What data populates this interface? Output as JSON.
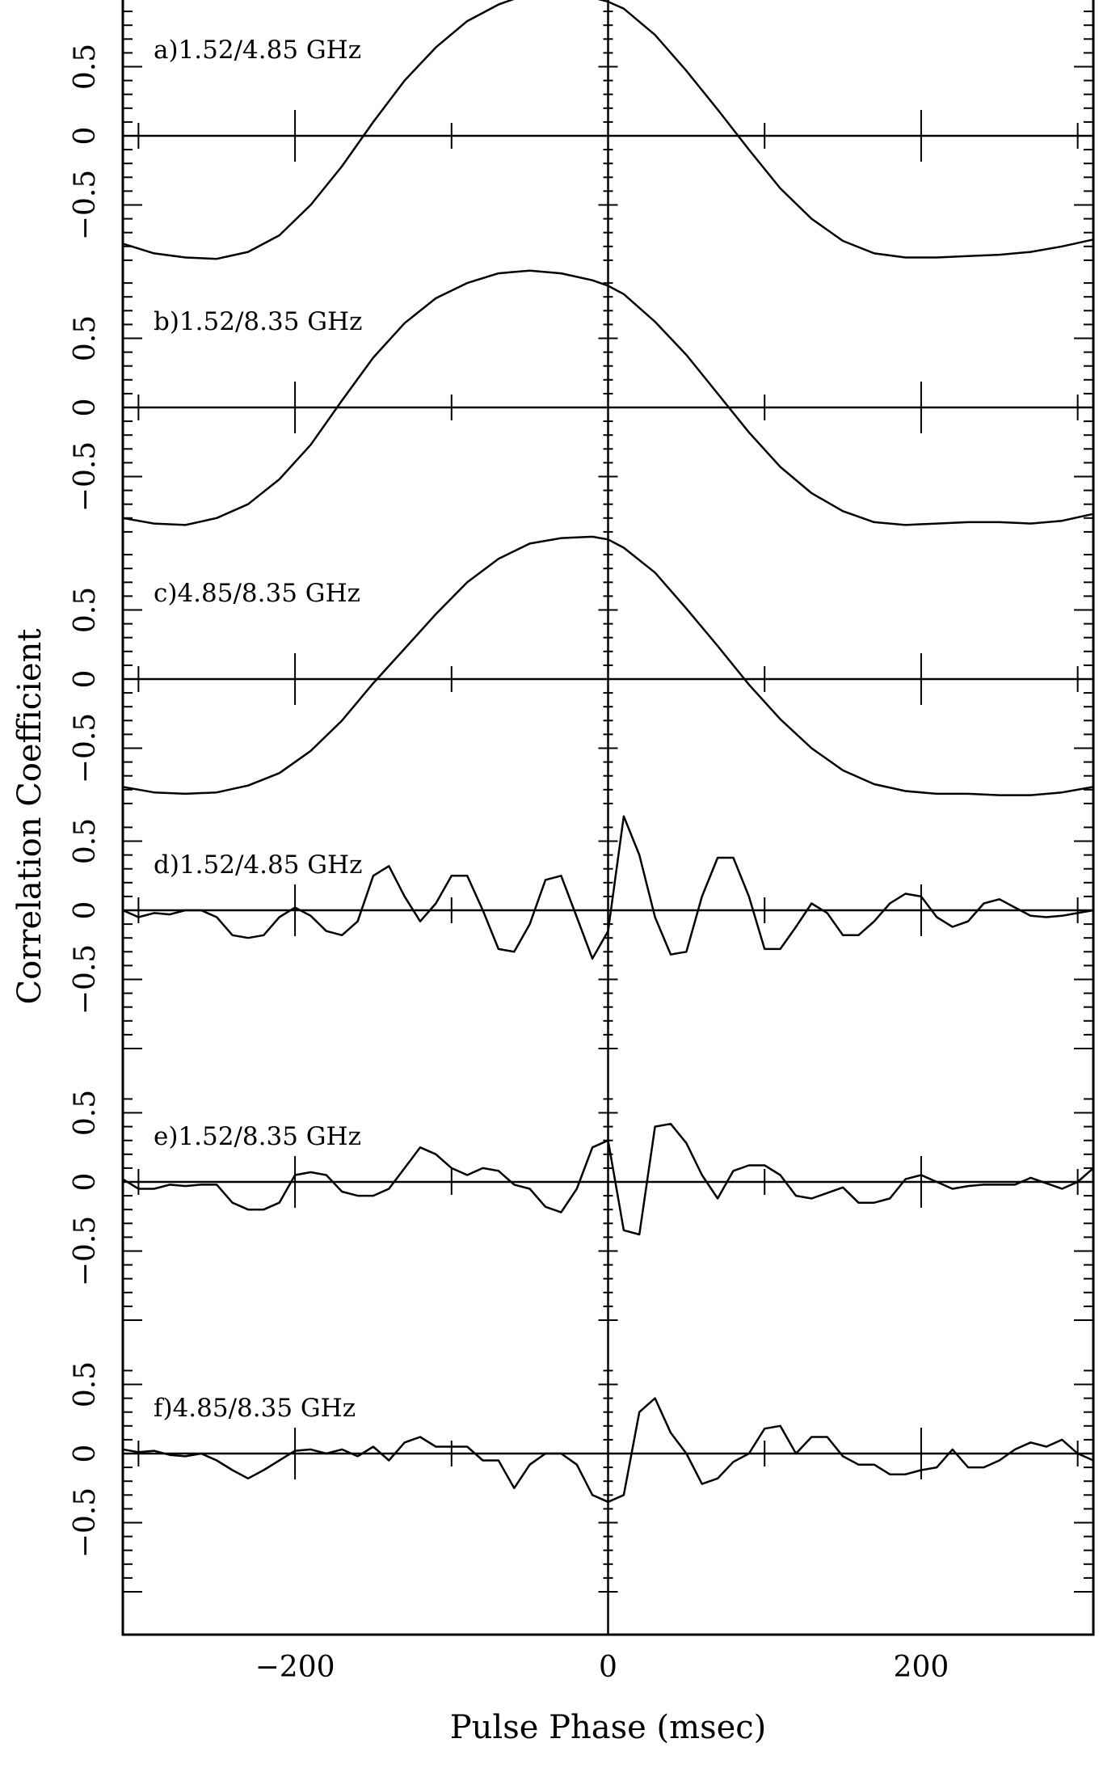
{
  "chart_data": {
    "type": "line",
    "xlabel": "Pulse Phase (msec)",
    "ylabel": "Correlation Coefficient",
    "xlim": [
      -310,
      310
    ],
    "x_ticklabels": [
      "−200",
      "0",
      "200"
    ],
    "y_ticklabels": [
      "−0.5",
      "0",
      "0.5"
    ],
    "grid": false,
    "panels": [
      {
        "id": "a",
        "label": "a)1.52/4.85 GHz",
        "ylim": [
          -1.0,
          1.0
        ],
        "x": [
          -310,
          -290,
          -270,
          -250,
          -230,
          -210,
          -190,
          -170,
          -150,
          -130,
          -110,
          -90,
          -70,
          -50,
          -30,
          -10,
          0,
          10,
          30,
          50,
          70,
          90,
          110,
          130,
          150,
          170,
          190,
          210,
          230,
          250,
          270,
          290,
          310
        ],
        "y": [
          -0.78,
          -0.85,
          -0.88,
          -0.89,
          -0.84,
          -0.72,
          -0.5,
          -0.22,
          0.1,
          0.4,
          0.64,
          0.83,
          0.95,
          1.03,
          1.04,
          1.0,
          0.97,
          0.92,
          0.73,
          0.47,
          0.19,
          -0.1,
          -0.38,
          -0.6,
          -0.76,
          -0.85,
          -0.88,
          -0.88,
          -0.87,
          -0.86,
          -0.84,
          -0.8,
          -0.75
        ]
      },
      {
        "id": "b",
        "label": "b)1.52/8.35 GHz",
        "ylim": [
          -1.0,
          1.0
        ],
        "x": [
          -310,
          -290,
          -270,
          -250,
          -230,
          -210,
          -190,
          -170,
          -150,
          -130,
          -110,
          -90,
          -70,
          -50,
          -30,
          -10,
          0,
          10,
          30,
          50,
          70,
          90,
          110,
          130,
          150,
          170,
          190,
          210,
          230,
          250,
          270,
          290,
          310
        ],
        "y": [
          -0.8,
          -0.84,
          -0.85,
          -0.8,
          -0.7,
          -0.52,
          -0.27,
          0.05,
          0.36,
          0.61,
          0.79,
          0.9,
          0.97,
          0.99,
          0.97,
          0.92,
          0.88,
          0.82,
          0.62,
          0.38,
          0.1,
          -0.18,
          -0.43,
          -0.62,
          -0.75,
          -0.83,
          -0.85,
          -0.84,
          -0.83,
          -0.83,
          -0.84,
          -0.82,
          -0.77
        ]
      },
      {
        "id": "c",
        "label": "c)4.85/8.35 GHz",
        "ylim": [
          -1.0,
          1.0
        ],
        "x": [
          -310,
          -290,
          -270,
          -250,
          -230,
          -210,
          -190,
          -170,
          -150,
          -130,
          -110,
          -90,
          -70,
          -50,
          -30,
          -10,
          0,
          10,
          30,
          50,
          70,
          90,
          110,
          130,
          150,
          170,
          190,
          210,
          230,
          250,
          270,
          290,
          310
        ],
        "y": [
          -0.78,
          -0.82,
          -0.83,
          -0.82,
          -0.77,
          -0.68,
          -0.52,
          -0.3,
          -0.03,
          0.22,
          0.47,
          0.7,
          0.87,
          0.98,
          1.02,
          1.03,
          1.01,
          0.95,
          0.77,
          0.51,
          0.24,
          -0.04,
          -0.29,
          -0.5,
          -0.66,
          -0.76,
          -0.81,
          -0.83,
          -0.83,
          -0.84,
          -0.84,
          -0.82,
          -0.78
        ]
      },
      {
        "id": "d",
        "label": "d)1.52/4.85 GHz",
        "ylim": [
          -1.0,
          1.0
        ],
        "x": [
          -310,
          -300,
          -290,
          -280,
          -270,
          -260,
          -250,
          -240,
          -230,
          -220,
          -210,
          -200,
          -190,
          -180,
          -170,
          -160,
          -150,
          -140,
          -130,
          -120,
          -110,
          -100,
          -90,
          -80,
          -70,
          -60,
          -50,
          -40,
          -30,
          -20,
          -10,
          0,
          10,
          20,
          30,
          40,
          50,
          60,
          70,
          80,
          90,
          100,
          110,
          120,
          130,
          140,
          150,
          160,
          170,
          180,
          190,
          200,
          210,
          220,
          230,
          240,
          250,
          260,
          270,
          280,
          290,
          300,
          310
        ],
        "y": [
          0.0,
          -0.05,
          -0.02,
          -0.03,
          0.0,
          0.0,
          -0.05,
          -0.18,
          -0.2,
          -0.18,
          -0.05,
          0.02,
          -0.04,
          -0.15,
          -0.18,
          -0.08,
          0.25,
          0.32,
          0.1,
          -0.08,
          0.05,
          0.25,
          0.25,
          0.0,
          -0.28,
          -0.3,
          -0.1,
          0.22,
          0.25,
          -0.05,
          -0.35,
          -0.15,
          0.68,
          0.4,
          -0.05,
          -0.32,
          -0.3,
          0.1,
          0.38,
          0.38,
          0.1,
          -0.28,
          -0.28,
          -0.12,
          0.05,
          -0.02,
          -0.18,
          -0.18,
          -0.08,
          0.05,
          0.12,
          0.1,
          -0.05,
          -0.12,
          -0.08,
          0.05,
          0.08,
          0.02,
          -0.04,
          -0.05,
          -0.04,
          -0.02,
          0.0
        ]
      },
      {
        "id": "e",
        "label": "e)1.52/8.35 GHz",
        "ylim": [
          -1.0,
          1.0
        ],
        "x": [
          -310,
          -300,
          -290,
          -280,
          -270,
          -260,
          -250,
          -240,
          -230,
          -220,
          -210,
          -200,
          -190,
          -180,
          -170,
          -160,
          -150,
          -140,
          -130,
          -120,
          -110,
          -100,
          -90,
          -80,
          -70,
          -60,
          -50,
          -40,
          -30,
          -20,
          -10,
          0,
          10,
          20,
          30,
          40,
          50,
          60,
          70,
          80,
          90,
          100,
          110,
          120,
          130,
          140,
          150,
          160,
          170,
          180,
          190,
          200,
          210,
          220,
          230,
          240,
          250,
          260,
          270,
          280,
          290,
          300,
          310
        ],
        "y": [
          0.02,
          -0.05,
          -0.05,
          -0.02,
          -0.03,
          -0.02,
          -0.02,
          -0.15,
          -0.2,
          -0.2,
          -0.15,
          0.05,
          0.07,
          0.05,
          -0.07,
          -0.1,
          -0.1,
          -0.05,
          0.1,
          0.25,
          0.2,
          0.1,
          0.05,
          0.1,
          0.08,
          -0.02,
          -0.05,
          -0.18,
          -0.22,
          -0.05,
          0.25,
          0.3,
          -0.35,
          -0.38,
          0.4,
          0.42,
          0.28,
          0.05,
          -0.12,
          0.08,
          0.12,
          0.12,
          0.05,
          -0.1,
          -0.12,
          -0.08,
          -0.04,
          -0.15,
          -0.15,
          -0.12,
          0.02,
          0.05,
          0.0,
          -0.05,
          -0.03,
          -0.02,
          -0.02,
          -0.02,
          0.03,
          -0.01,
          -0.05,
          0.0,
          0.1
        ]
      },
      {
        "id": "f",
        "label": "f)4.85/8.35 GHz",
        "ylim": [
          -1.0,
          1.0
        ],
        "x": [
          -310,
          -300,
          -290,
          -280,
          -270,
          -260,
          -250,
          -240,
          -230,
          -220,
          -210,
          -200,
          -190,
          -180,
          -170,
          -160,
          -150,
          -140,
          -130,
          -120,
          -110,
          -100,
          -90,
          -80,
          -70,
          -60,
          -50,
          -40,
          -30,
          -20,
          -10,
          0,
          10,
          20,
          30,
          40,
          50,
          60,
          70,
          80,
          90,
          100,
          110,
          120,
          130,
          140,
          150,
          160,
          170,
          180,
          190,
          200,
          210,
          220,
          230,
          240,
          250,
          260,
          270,
          280,
          290,
          300,
          310
        ],
        "y": [
          0.03,
          0.01,
          0.02,
          -0.01,
          -0.02,
          0.0,
          -0.05,
          -0.12,
          -0.18,
          -0.12,
          -0.05,
          0.02,
          0.03,
          0.0,
          0.03,
          -0.02,
          0.05,
          -0.05,
          0.08,
          0.12,
          0.05,
          0.05,
          0.05,
          -0.05,
          -0.05,
          -0.25,
          -0.08,
          0.0,
          0.0,
          -0.08,
          -0.3,
          -0.35,
          -0.3,
          0.3,
          0.4,
          0.15,
          0.0,
          -0.22,
          -0.18,
          -0.06,
          0.0,
          0.18,
          0.2,
          0.0,
          0.12,
          0.12,
          -0.02,
          -0.08,
          -0.08,
          -0.15,
          -0.15,
          -0.12,
          -0.1,
          0.03,
          -0.1,
          -0.1,
          -0.05,
          0.03,
          0.08,
          0.05,
          0.1,
          0.0,
          -0.05
        ]
      }
    ]
  }
}
